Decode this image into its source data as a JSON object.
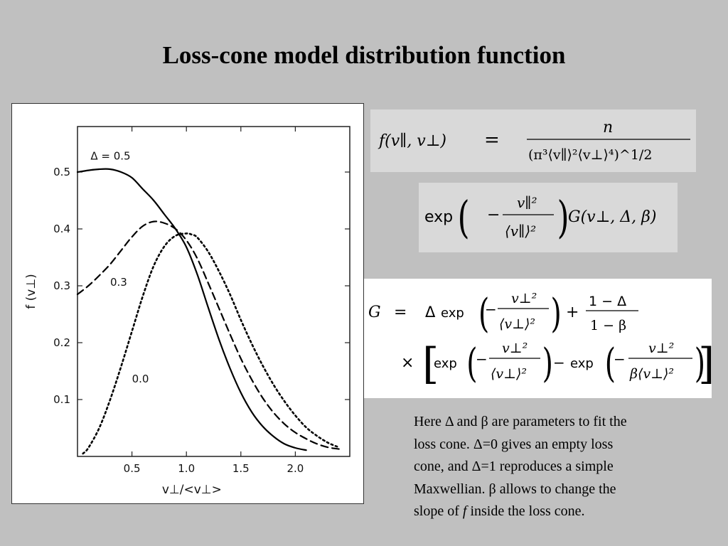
{
  "slide": {
    "title": "Loss-cone model distribution function"
  },
  "formulas": {
    "f_lhs": "f(v∥, v⊥)",
    "equals": "=",
    "f_numerator": "n",
    "f_denominator": "(π³⟨v∥⟩²⟨v⊥⟩⁴)^1/2",
    "times": "×",
    "exp": "exp",
    "exp_arg_num": "v∥²",
    "exp_arg_den": "⟨v∥⟩²",
    "g_call": "G(v⊥, Δ, β)",
    "G_lhs": "G",
    "G_delta": "Δ",
    "G_exp_num": "v⊥²",
    "G_exp_den": "⟨v⊥⟩²",
    "G_plus": "+",
    "G_frac_num": "1 − Δ",
    "G_frac_den": "1 − β",
    "G_minus": "−",
    "G_exp3_den": "β⟨v⊥⟩²"
  },
  "description": {
    "lines": [
      "Here Δ and β are parameters to fit the",
      "loss cone. Δ=0 gives an empty loss",
      "cone, and Δ=1 reproduces a simple",
      "Maxwellian. β allows to change the",
      "slope of ",
      "f",
      " inside the loss cone."
    ]
  },
  "chart_data": {
    "type": "line",
    "xlabel": "v⊥/<v⊥>",
    "ylabel": "f (v⊥)",
    "xlim": [
      0,
      2.5
    ],
    "ylim": [
      0,
      0.58
    ],
    "xticks": [
      0.5,
      1.0,
      1.5,
      2.0
    ],
    "xtick_labels": [
      "0.5",
      "1.0",
      "1.5",
      "2.0"
    ],
    "yticks": [
      0.1,
      0.2,
      0.3,
      0.4,
      0.5
    ],
    "ytick_labels": [
      "0.1",
      "0.2",
      "0.3",
      "0.4",
      "0.5"
    ],
    "grid": false,
    "series": [
      {
        "name": "Δ = 0.5",
        "style": "solid",
        "x": [
          0.0,
          0.1,
          0.2,
          0.3,
          0.4,
          0.5,
          0.6,
          0.7,
          0.8,
          0.9,
          1.0,
          1.1,
          1.2,
          1.3,
          1.4,
          1.5,
          1.6,
          1.7,
          1.8,
          1.9,
          2.0,
          2.1
        ],
        "y": [
          0.5,
          0.503,
          0.505,
          0.505,
          0.5,
          0.49,
          0.47,
          0.45,
          0.425,
          0.4,
          0.368,
          0.32,
          0.262,
          0.205,
          0.155,
          0.112,
          0.078,
          0.053,
          0.035,
          0.022,
          0.015,
          0.011
        ]
      },
      {
        "name": "0.3",
        "style": "dashed",
        "x": [
          0.0,
          0.1,
          0.2,
          0.3,
          0.4,
          0.5,
          0.6,
          0.7,
          0.8,
          0.9,
          1.0,
          1.1,
          1.2,
          1.3,
          1.4,
          1.5,
          1.6,
          1.7,
          1.8,
          1.9,
          2.0,
          2.1,
          2.2,
          2.3,
          2.4
        ],
        "y": [
          0.285,
          0.3,
          0.318,
          0.338,
          0.362,
          0.386,
          0.405,
          0.413,
          0.41,
          0.4,
          0.38,
          0.348,
          0.305,
          0.26,
          0.215,
          0.172,
          0.135,
          0.103,
          0.077,
          0.057,
          0.042,
          0.031,
          0.022,
          0.016,
          0.013
        ]
      },
      {
        "name": "0.0",
        "style": "dotted",
        "x": [
          0.05,
          0.1,
          0.2,
          0.3,
          0.4,
          0.5,
          0.6,
          0.7,
          0.8,
          0.9,
          1.0,
          1.05,
          1.1,
          1.2,
          1.3,
          1.4,
          1.5,
          1.6,
          1.7,
          1.8,
          1.9,
          2.0,
          2.1,
          2.2,
          2.3,
          2.4
        ],
        "y": [
          0.005,
          0.015,
          0.05,
          0.1,
          0.158,
          0.22,
          0.282,
          0.335,
          0.37,
          0.388,
          0.392,
          0.39,
          0.385,
          0.36,
          0.325,
          0.285,
          0.24,
          0.198,
          0.16,
          0.126,
          0.097,
          0.072,
          0.051,
          0.036,
          0.024,
          0.016
        ]
      }
    ],
    "annotations": [
      "Δ = 0.5",
      "0.3",
      "0.0"
    ]
  }
}
